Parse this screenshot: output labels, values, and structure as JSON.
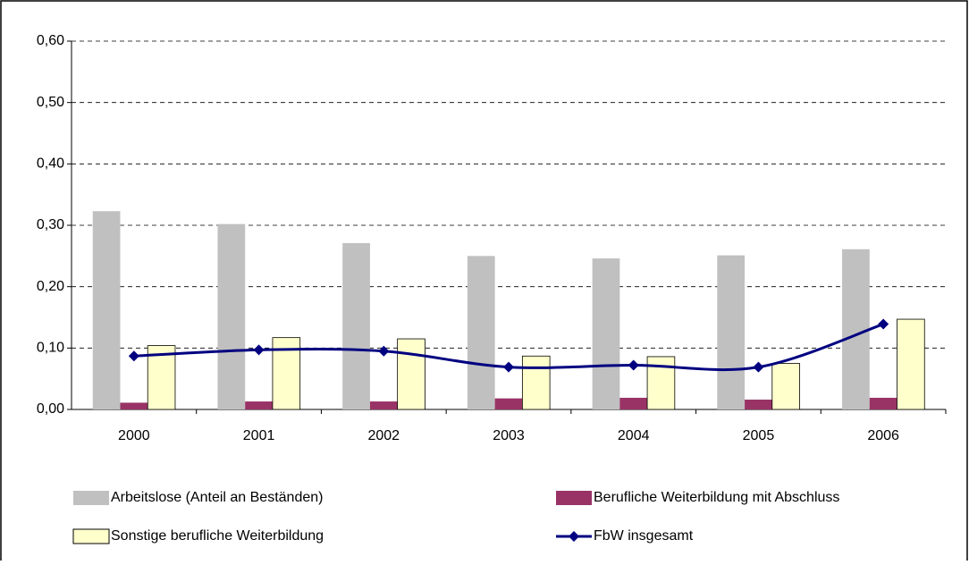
{
  "chart_data": {
    "type": "bar",
    "categories": [
      "2000",
      "2001",
      "2002",
      "2003",
      "2004",
      "2005",
      "2006"
    ],
    "series": [
      {
        "name": "Arbeitslose (Anteil an Beständen)",
        "color": "#c0c0c0",
        "values": [
          0.323,
          0.302,
          0.271,
          0.25,
          0.246,
          0.251,
          0.261
        ]
      },
      {
        "name": "Berufliche Weiterbildung mit Abschluss",
        "color": "#993366",
        "values": [
          0.011,
          0.013,
          0.013,
          0.018,
          0.019,
          0.016,
          0.019
        ]
      },
      {
        "name": "Sonstige berufliche Weiterbildung",
        "color": "#ffffcc",
        "values": [
          0.104,
          0.117,
          0.115,
          0.087,
          0.086,
          0.075,
          0.147
        ]
      },
      {
        "name": "FbW insgesamt",
        "type": "line",
        "color": "#000080",
        "values": [
          0.087,
          0.097,
          0.095,
          0.069,
          0.072,
          0.069,
          0.139
        ]
      }
    ],
    "ylim": [
      0,
      0.6
    ],
    "yticks": [
      {
        "value": 0,
        "label": "0,00"
      },
      {
        "value": 0.1,
        "label": "0,10"
      },
      {
        "value": 0.2,
        "label": "0,20"
      },
      {
        "value": 0.3,
        "label": "0,30"
      },
      {
        "value": 0.4,
        "label": "0,40"
      },
      {
        "value": 0.5,
        "label": "0,50"
      },
      {
        "value": 0.6,
        "label": "0,60"
      }
    ],
    "grid": true
  }
}
